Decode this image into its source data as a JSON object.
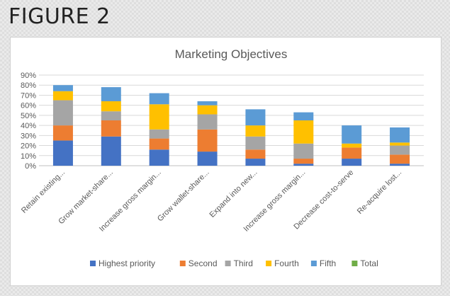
{
  "figure_label": "FIGURE 2",
  "chart_data": {
    "type": "bar",
    "stacked": true,
    "title": "Marketing Objectives",
    "xlabel": "",
    "ylabel": "",
    "ylim": [
      0,
      90
    ],
    "y_ticks": [
      "0%",
      "10%",
      "20%",
      "30%",
      "40%",
      "50%",
      "60%",
      "70%",
      "80%",
      "90%"
    ],
    "grid": true,
    "legend_position": "bottom",
    "categories": [
      "Retain existing...",
      "Grow market-share...",
      "Increase gross margin...",
      "Grow wallet-share...",
      "Expand into new...",
      "Increase gross margin...",
      "Decrease cost-to-serve",
      "Re-acquire lost..."
    ],
    "series": [
      {
        "name": "Highest priority",
        "color": "#4472c4",
        "values": [
          25,
          29,
          16,
          14,
          7,
          2,
          7,
          2
        ]
      },
      {
        "name": "Second",
        "color": "#ed7d31",
        "values": [
          15,
          16,
          11,
          22,
          9,
          5,
          11,
          9
        ]
      },
      {
        "name": "Third",
        "color": "#a5a5a5",
        "values": [
          25,
          9,
          9,
          15,
          13,
          15,
          0,
          9
        ]
      },
      {
        "name": "Fourth",
        "color": "#ffc000",
        "values": [
          9,
          10,
          25,
          9,
          11,
          23,
          4,
          3
        ]
      },
      {
        "name": "Fifth",
        "color": "#5b9bd5",
        "values": [
          6,
          14,
          11,
          4,
          16,
          8,
          18,
          15
        ]
      },
      {
        "name": "Total",
        "color": "#70ad47",
        "values": [
          0,
          0,
          0,
          0,
          0,
          0,
          0,
          0
        ]
      }
    ]
  }
}
